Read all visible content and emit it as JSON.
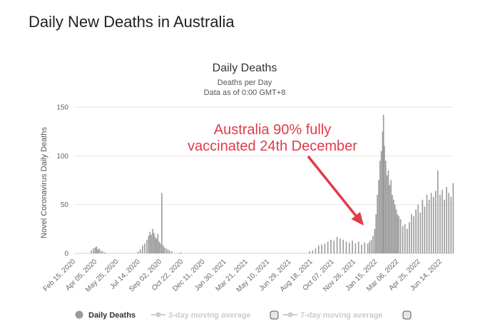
{
  "page": {
    "heading": "Daily New Deaths in Australia"
  },
  "chart_data": {
    "type": "bar",
    "title": "Daily Deaths",
    "subtitle": "Deaths per Day",
    "subtitle2": "Data as of 0:00 GMT+8",
    "ylabel": "Novel Coronavirus Daily Deaths",
    "ylim": [
      0,
      150
    ],
    "yticks": [
      0,
      50,
      100,
      150
    ],
    "x_start": "2020-02-15",
    "x_end": "2022-06-30",
    "xticks": [
      "Feb 15, 2020",
      "Apr 05, 2020",
      "May 25, 2020",
      "Jul 14, 2020",
      "Sep 02, 2020",
      "Oct 22, 2020",
      "Dec 11, 2020",
      "Jan 30, 2021",
      "Mar 21, 2021",
      "May 10, 2021",
      "Jun 29, 2021",
      "Aug 18, 2021",
      "Oct 07, 2021",
      "Nov 26, 2021",
      "Jan 15, 2022",
      "Mar 06, 2022",
      "Apr 25, 2022",
      "Jun 14, 2022"
    ],
    "series": [
      {
        "name": "Daily Deaths",
        "color": "#999999",
        "points": [
          [
            "2020-03-25",
            3
          ],
          [
            "2020-03-30",
            5
          ],
          [
            "2020-04-03",
            6
          ],
          [
            "2020-04-06",
            7
          ],
          [
            "2020-04-09",
            4
          ],
          [
            "2020-04-12",
            5
          ],
          [
            "2020-04-16",
            3
          ],
          [
            "2020-04-20",
            2
          ],
          [
            "2020-04-25",
            1
          ],
          [
            "2020-07-10",
            2
          ],
          [
            "2020-07-15",
            4
          ],
          [
            "2020-07-20",
            8
          ],
          [
            "2020-07-25",
            10
          ],
          [
            "2020-07-30",
            14
          ],
          [
            "2020-08-03",
            18
          ],
          [
            "2020-08-06",
            22
          ],
          [
            "2020-08-09",
            19
          ],
          [
            "2020-08-12",
            25
          ],
          [
            "2020-08-15",
            21
          ],
          [
            "2020-08-18",
            17
          ],
          [
            "2020-08-21",
            15
          ],
          [
            "2020-08-24",
            20
          ],
          [
            "2020-08-27",
            12
          ],
          [
            "2020-08-30",
            10
          ],
          [
            "2020-09-02",
            62
          ],
          [
            "2020-09-05",
            8
          ],
          [
            "2020-09-08",
            6
          ],
          [
            "2020-09-12",
            5
          ],
          [
            "2020-09-16",
            4
          ],
          [
            "2020-09-20",
            3
          ],
          [
            "2020-09-25",
            2
          ],
          [
            "2020-10-15",
            1
          ],
          [
            "2021-08-05",
            2
          ],
          [
            "2021-08-12",
            3
          ],
          [
            "2021-08-19",
            5
          ],
          [
            "2021-08-26",
            8
          ],
          [
            "2021-09-02",
            9
          ],
          [
            "2021-09-09",
            10
          ],
          [
            "2021-09-16",
            12
          ],
          [
            "2021-09-23",
            14
          ],
          [
            "2021-09-30",
            13
          ],
          [
            "2021-10-07",
            17
          ],
          [
            "2021-10-14",
            15
          ],
          [
            "2021-10-21",
            14
          ],
          [
            "2021-10-28",
            12
          ],
          [
            "2021-11-04",
            11
          ],
          [
            "2021-11-11",
            13
          ],
          [
            "2021-11-18",
            10
          ],
          [
            "2021-11-25",
            12
          ],
          [
            "2021-12-02",
            9
          ],
          [
            "2021-12-09",
            11
          ],
          [
            "2021-12-16",
            10
          ],
          [
            "2021-12-20",
            12
          ],
          [
            "2021-12-24",
            14
          ],
          [
            "2021-12-28",
            18
          ],
          [
            "2022-01-01",
            25
          ],
          [
            "2022-01-04",
            40
          ],
          [
            "2022-01-07",
            60
          ],
          [
            "2022-01-10",
            75
          ],
          [
            "2022-01-13",
            95
          ],
          [
            "2022-01-16",
            105
          ],
          [
            "2022-01-19",
            125
          ],
          [
            "2022-01-21",
            142
          ],
          [
            "2022-01-23",
            110
          ],
          [
            "2022-01-26",
            95
          ],
          [
            "2022-01-29",
            80
          ],
          [
            "2022-02-01",
            85
          ],
          [
            "2022-02-04",
            70
          ],
          [
            "2022-02-07",
            75
          ],
          [
            "2022-02-10",
            60
          ],
          [
            "2022-02-13",
            55
          ],
          [
            "2022-02-16",
            50
          ],
          [
            "2022-02-19",
            45
          ],
          [
            "2022-02-22",
            40
          ],
          [
            "2022-02-25",
            38
          ],
          [
            "2022-03-01",
            35
          ],
          [
            "2022-03-06",
            28
          ],
          [
            "2022-03-11",
            30
          ],
          [
            "2022-03-16",
            25
          ],
          [
            "2022-03-21",
            32
          ],
          [
            "2022-03-26",
            40
          ],
          [
            "2022-03-31",
            38
          ],
          [
            "2022-04-05",
            45
          ],
          [
            "2022-04-10",
            50
          ],
          [
            "2022-04-15",
            42
          ],
          [
            "2022-04-20",
            55
          ],
          [
            "2022-04-25",
            48
          ],
          [
            "2022-04-30",
            60
          ],
          [
            "2022-05-05",
            55
          ],
          [
            "2022-05-10",
            62
          ],
          [
            "2022-05-15",
            58
          ],
          [
            "2022-05-20",
            64
          ],
          [
            "2022-05-25",
            85
          ],
          [
            "2022-05-30",
            60
          ],
          [
            "2022-06-04",
            65
          ],
          [
            "2022-06-09",
            55
          ],
          [
            "2022-06-14",
            68
          ],
          [
            "2022-06-19",
            62
          ],
          [
            "2022-06-24",
            58
          ],
          [
            "2022-06-29",
            72
          ]
        ]
      }
    ],
    "annotation": {
      "line1": "Australia 90% fully",
      "line2": "vaccinated 24th December",
      "color": "#e23a4a",
      "target": [
        "2021-12-24",
        15
      ]
    },
    "legend": {
      "position": "bottom",
      "items": [
        {
          "label": "Daily Deaths",
          "active": true
        },
        {
          "label": "3-day moving average",
          "active": false
        },
        {
          "label": "7-day moving average",
          "active": false
        }
      ]
    },
    "grid": true
  }
}
